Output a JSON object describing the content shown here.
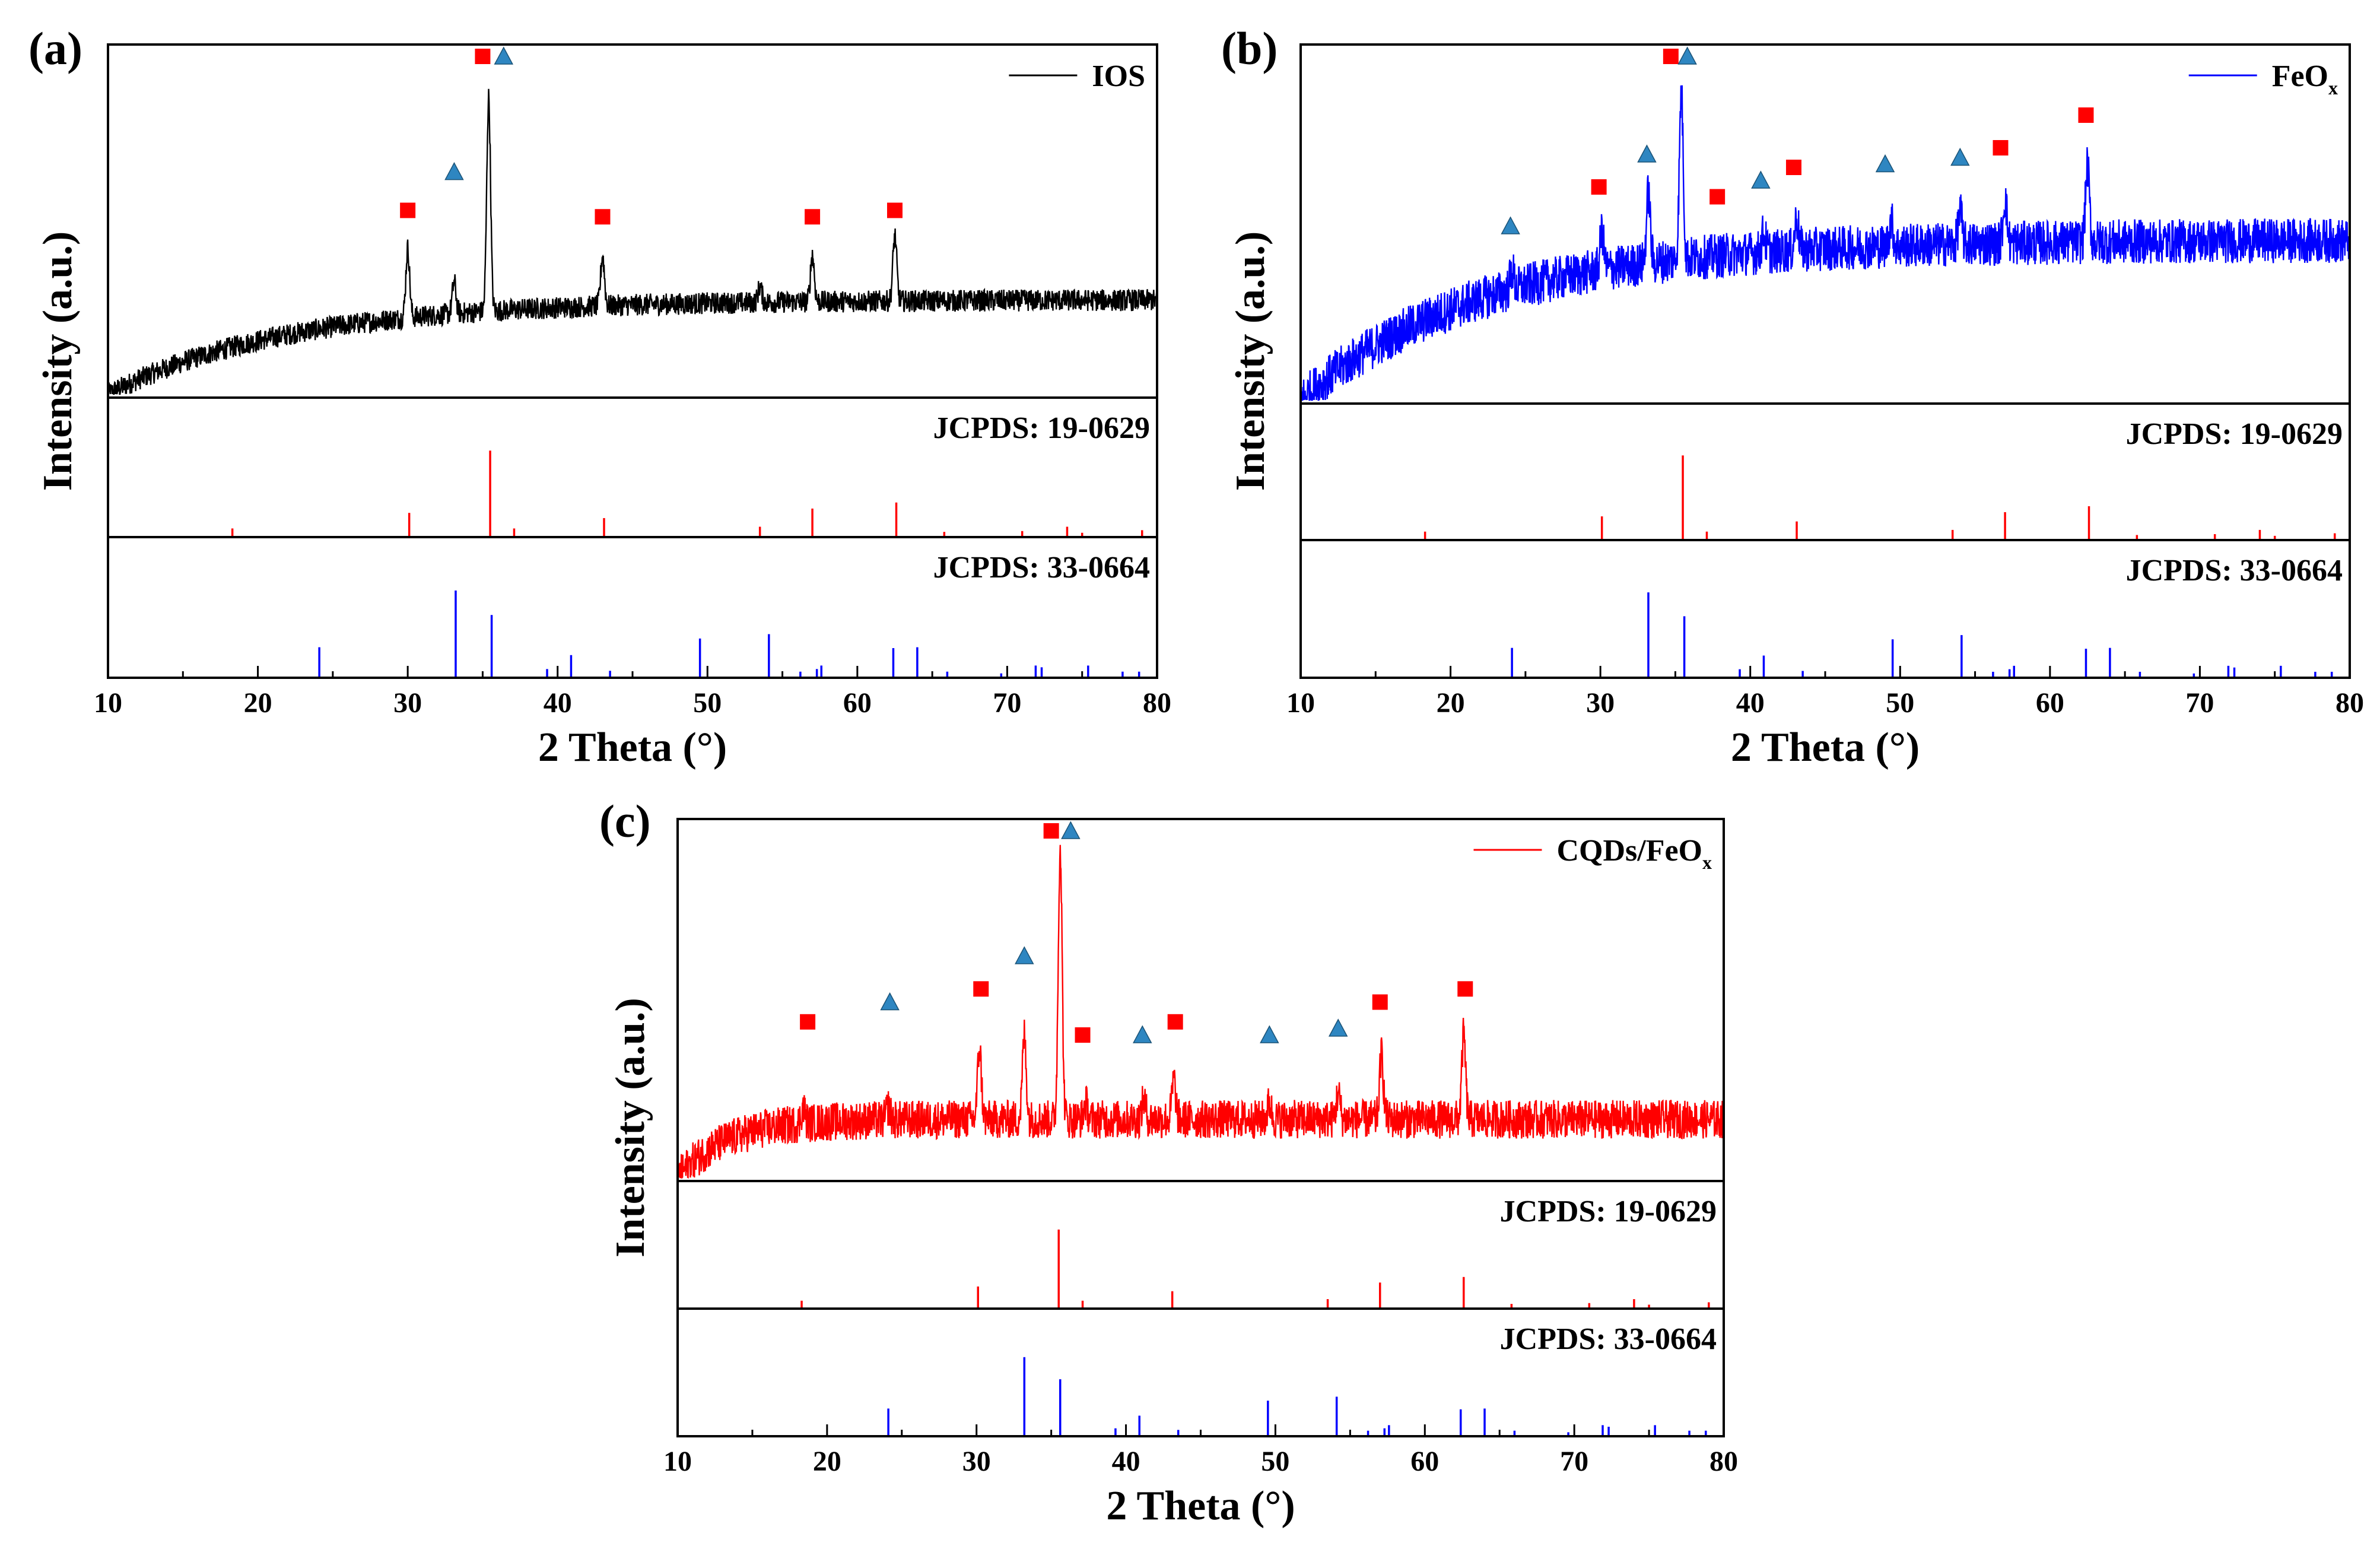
{
  "chart_data": [
    {
      "type": "line",
      "panel_label": "(a)",
      "xlabel": "2 Theta (°)",
      "ylabel": "Intensity (a.u.)",
      "xlim": [
        10,
        80
      ],
      "xticks": [
        "10",
        "20",
        "30",
        "40",
        "50",
        "60",
        "70",
        "80"
      ],
      "series": [
        {
          "name": "IOS",
          "name_main": "IOS",
          "name_sub": "",
          "color": "#000000"
        }
      ],
      "baseline": {
        "start": 0.0,
        "plateau": 0.3,
        "knee": 40
      },
      "noise": 0.035,
      "peaks": [
        {
          "x": 30.0,
          "h": 0.22
        },
        {
          "x": 33.1,
          "h": 0.1
        },
        {
          "x": 35.4,
          "h": 0.68
        },
        {
          "x": 43.0,
          "h": 0.16
        },
        {
          "x": 53.5,
          "h": 0.05
        },
        {
          "x": 57.0,
          "h": 0.15
        },
        {
          "x": 62.5,
          "h": 0.21
        }
      ],
      "markers": [
        {
          "x": 30.0,
          "shape": "square",
          "y": 0.52
        },
        {
          "x": 33.1,
          "shape": "triangle",
          "y": 0.64
        },
        {
          "x": 35.0,
          "shape": "square",
          "y": 1.0
        },
        {
          "x": 36.4,
          "shape": "triangle",
          "y": 1.0
        },
        {
          "x": 43.0,
          "shape": "square",
          "y": 0.5
        },
        {
          "x": 57.0,
          "shape": "square",
          "y": 0.5
        },
        {
          "x": 62.5,
          "shape": "square",
          "y": 0.52
        }
      ],
      "refs": [
        {
          "label": "JCPDS: 19-0629",
          "color": "#ff0000",
          "sticks": [
            [
              18.3,
              0.1
            ],
            [
              30.1,
              0.28
            ],
            [
              35.5,
              1.0
            ],
            [
              37.1,
              0.1
            ],
            [
              43.1,
              0.22
            ],
            [
              53.5,
              0.12
            ],
            [
              57.0,
              0.33
            ],
            [
              62.6,
              0.4
            ],
            [
              65.8,
              0.06
            ],
            [
              71.0,
              0.07
            ],
            [
              74.0,
              0.12
            ],
            [
              75.0,
              0.05
            ],
            [
              79.0,
              0.08
            ]
          ]
        },
        {
          "label": "JCPDS: 33-0664",
          "color": "#0000ff",
          "sticks": [
            [
              24.1,
              0.35
            ],
            [
              33.2,
              1.0
            ],
            [
              35.6,
              0.72
            ],
            [
              39.3,
              0.1
            ],
            [
              40.9,
              0.26
            ],
            [
              43.5,
              0.08
            ],
            [
              49.5,
              0.45
            ],
            [
              54.1,
              0.5
            ],
            [
              56.2,
              0.07
            ],
            [
              57.6,
              0.14
            ],
            [
              57.3,
              0.1
            ],
            [
              62.4,
              0.34
            ],
            [
              64.0,
              0.35
            ],
            [
              66.0,
              0.07
            ],
            [
              69.6,
              0.05
            ],
            [
              71.9,
              0.14
            ],
            [
              72.3,
              0.12
            ],
            [
              75.4,
              0.14
            ],
            [
              77.7,
              0.07
            ],
            [
              78.8,
              0.07
            ]
          ]
        }
      ]
    },
    {
      "type": "line",
      "panel_label": "(b)",
      "xlabel": "2 Theta (°)",
      "ylabel": "Intensity (a.u.)",
      "xlim": [
        10,
        80
      ],
      "xticks": [
        "10",
        "20",
        "30",
        "40",
        "50",
        "60",
        "70",
        "80"
      ],
      "series": [
        {
          "name": "FeOx",
          "name_main": "FeO",
          "name_sub": "x",
          "color": "#0000ff"
        }
      ],
      "baseline": {
        "start": 0.0,
        "plateau": 0.5,
        "knee": 40
      },
      "noise": 0.07,
      "peaks": [
        {
          "x": 24.1,
          "h": 0.06
        },
        {
          "x": 30.1,
          "h": 0.12
        },
        {
          "x": 33.2,
          "h": 0.22
        },
        {
          "x": 35.4,
          "h": 0.52
        },
        {
          "x": 40.9,
          "h": 0.06
        },
        {
          "x": 43.1,
          "h": 0.1
        },
        {
          "x": 49.4,
          "h": 0.08
        },
        {
          "x": 54.0,
          "h": 0.1
        },
        {
          "x": 57.0,
          "h": 0.14
        },
        {
          "x": 62.5,
          "h": 0.24
        }
      ],
      "markers": [
        {
          "x": 24.0,
          "shape": "triangle",
          "y": 0.48
        },
        {
          "x": 29.9,
          "shape": "square",
          "y": 0.6
        },
        {
          "x": 33.1,
          "shape": "triangle",
          "y": 0.7
        },
        {
          "x": 34.7,
          "shape": "square",
          "y": 1.0
        },
        {
          "x": 35.8,
          "shape": "triangle",
          "y": 1.0
        },
        {
          "x": 37.8,
          "shape": "square",
          "y": 0.57
        },
        {
          "x": 40.7,
          "shape": "triangle",
          "y": 0.62
        },
        {
          "x": 42.9,
          "shape": "square",
          "y": 0.66
        },
        {
          "x": 49.0,
          "shape": "triangle",
          "y": 0.67
        },
        {
          "x": 54.0,
          "shape": "triangle",
          "y": 0.69
        },
        {
          "x": 56.7,
          "shape": "square",
          "y": 0.72
        },
        {
          "x": 62.4,
          "shape": "square",
          "y": 0.82
        }
      ],
      "refs": [
        {
          "label": "JCPDS: 19-0629",
          "color": "#ff0000",
          "sticks": [
            [
              18.3,
              0.1
            ],
            [
              30.1,
              0.28
            ],
            [
              35.5,
              1.0
            ],
            [
              37.1,
              0.1
            ],
            [
              43.1,
              0.22
            ],
            [
              53.5,
              0.12
            ],
            [
              57.0,
              0.33
            ],
            [
              62.6,
              0.4
            ],
            [
              65.8,
              0.06
            ],
            [
              71.0,
              0.07
            ],
            [
              74.0,
              0.12
            ],
            [
              75.0,
              0.05
            ],
            [
              79.0,
              0.08
            ]
          ]
        },
        {
          "label": "JCPDS: 33-0664",
          "color": "#0000ff",
          "sticks": [
            [
              24.1,
              0.35
            ],
            [
              33.2,
              1.0
            ],
            [
              35.6,
              0.72
            ],
            [
              39.3,
              0.1
            ],
            [
              40.9,
              0.26
            ],
            [
              43.5,
              0.08
            ],
            [
              49.5,
              0.45
            ],
            [
              54.1,
              0.5
            ],
            [
              56.2,
              0.07
            ],
            [
              57.6,
              0.14
            ],
            [
              57.3,
              0.1
            ],
            [
              62.4,
              0.34
            ],
            [
              64.0,
              0.35
            ],
            [
              66.0,
              0.07
            ],
            [
              69.6,
              0.05
            ],
            [
              71.9,
              0.14
            ],
            [
              72.3,
              0.12
            ],
            [
              75.4,
              0.14
            ],
            [
              77.7,
              0.07
            ],
            [
              78.8,
              0.07
            ]
          ]
        }
      ]
    },
    {
      "type": "line",
      "panel_label": "(c)",
      "xlabel": "2 Theta (°)",
      "ylabel": "Intensity (a.u.)",
      "xlim": [
        10,
        80
      ],
      "xticks": [
        "10",
        "20",
        "30",
        "40",
        "50",
        "60",
        "70",
        "80"
      ],
      "series": [
        {
          "name": "CQDs/FeOx",
          "name_main": "CQDs/FeO",
          "name_sub": "x",
          "color": "#ff0000"
        }
      ],
      "baseline": {
        "start": 0.0,
        "plateau": 0.18,
        "knee": 18
      },
      "noise": 0.06,
      "peaks": [
        {
          "x": 18.4,
          "h": 0.05
        },
        {
          "x": 24.1,
          "h": 0.04
        },
        {
          "x": 30.2,
          "h": 0.22
        },
        {
          "x": 33.2,
          "h": 0.26
        },
        {
          "x": 35.6,
          "h": 0.85
        },
        {
          "x": 37.3,
          "h": 0.05
        },
        {
          "x": 41.2,
          "h": 0.06
        },
        {
          "x": 43.2,
          "h": 0.12
        },
        {
          "x": 49.6,
          "h": 0.05
        },
        {
          "x": 54.2,
          "h": 0.08
        },
        {
          "x": 57.1,
          "h": 0.2
        },
        {
          "x": 62.6,
          "h": 0.26
        }
      ],
      "markers": [
        {
          "x": 18.7,
          "shape": "square",
          "y": 0.42
        },
        {
          "x": 24.2,
          "shape": "triangle",
          "y": 0.48
        },
        {
          "x": 30.3,
          "shape": "square",
          "y": 0.52
        },
        {
          "x": 33.2,
          "shape": "triangle",
          "y": 0.62
        },
        {
          "x": 35.0,
          "shape": "square",
          "y": 1.0
        },
        {
          "x": 36.3,
          "shape": "triangle",
          "y": 1.0
        },
        {
          "x": 37.1,
          "shape": "square",
          "y": 0.38
        },
        {
          "x": 41.1,
          "shape": "triangle",
          "y": 0.38
        },
        {
          "x": 43.3,
          "shape": "square",
          "y": 0.42
        },
        {
          "x": 49.6,
          "shape": "triangle",
          "y": 0.38
        },
        {
          "x": 54.2,
          "shape": "triangle",
          "y": 0.4
        },
        {
          "x": 57.0,
          "shape": "square",
          "y": 0.48
        },
        {
          "x": 62.7,
          "shape": "square",
          "y": 0.52
        }
      ],
      "refs": [
        {
          "label": "JCPDS: 19-0629",
          "color": "#ff0000",
          "sticks": [
            [
              18.3,
              0.1
            ],
            [
              30.1,
              0.28
            ],
            [
              35.5,
              1.0
            ],
            [
              37.1,
              0.1
            ],
            [
              43.1,
              0.22
            ],
            [
              53.5,
              0.12
            ],
            [
              57.0,
              0.33
            ],
            [
              62.6,
              0.4
            ],
            [
              65.8,
              0.06
            ],
            [
              71.0,
              0.07
            ],
            [
              74.0,
              0.12
            ],
            [
              75.0,
              0.05
            ],
            [
              79.0,
              0.08
            ]
          ]
        },
        {
          "label": "JCPDS: 33-0664",
          "color": "#0000ff",
          "sticks": [
            [
              24.1,
              0.35
            ],
            [
              33.2,
              1.0
            ],
            [
              35.6,
              0.72
            ],
            [
              39.3,
              0.1
            ],
            [
              40.9,
              0.26
            ],
            [
              43.5,
              0.08
            ],
            [
              49.5,
              0.45
            ],
            [
              54.1,
              0.5
            ],
            [
              56.2,
              0.07
            ],
            [
              57.6,
              0.14
            ],
            [
              57.3,
              0.1
            ],
            [
              62.4,
              0.34
            ],
            [
              64.0,
              0.35
            ],
            [
              66.0,
              0.07
            ],
            [
              69.6,
              0.05
            ],
            [
              71.9,
              0.14
            ],
            [
              72.3,
              0.12
            ],
            [
              75.4,
              0.14
            ],
            [
              77.7,
              0.07
            ],
            [
              78.8,
              0.07
            ]
          ]
        }
      ]
    }
  ],
  "colors": {
    "square_marker": "#ff0000",
    "triangle_marker": "#2e86c1",
    "triangle_edge": "#1a5276"
  }
}
